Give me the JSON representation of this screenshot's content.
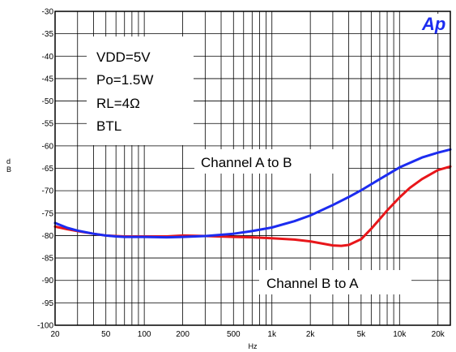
{
  "chart_data": {
    "type": "line",
    "xlabel": "Hz",
    "ylabel": "d B",
    "ylabel_lines": [
      "d",
      "B"
    ],
    "xscale": "log",
    "xlim": [
      20,
      25000
    ],
    "ylim": [
      -100,
      -30
    ],
    "grid": true,
    "xticks": [
      {
        "value": 20,
        "label": "20"
      },
      {
        "value": 50,
        "label": "50"
      },
      {
        "value": 100,
        "label": "100"
      },
      {
        "value": 200,
        "label": "200"
      },
      {
        "value": 500,
        "label": "500"
      },
      {
        "value": 1000,
        "label": "1k"
      },
      {
        "value": 2000,
        "label": "2k"
      },
      {
        "value": 5000,
        "label": "5k"
      },
      {
        "value": 10000,
        "label": "10k"
      },
      {
        "value": 20000,
        "label": "20k"
      }
    ],
    "yticks": [
      -30,
      -35,
      -40,
      -45,
      -50,
      -55,
      -60,
      -65,
      -70,
      -75,
      -80,
      -85,
      -90,
      -95,
      -100
    ],
    "conditions": [
      "VDD=5V",
      "Po=1.5W",
      "RL=4Ω",
      "BTL"
    ],
    "logo": "Ap",
    "series": [
      {
        "name": "Channel A to B",
        "color": "#1c2cf0",
        "x": [
          20,
          25,
          30,
          40,
          50,
          60,
          70,
          80,
          100,
          150,
          200,
          300,
          500,
          700,
          1000,
          1500,
          2000,
          3000,
          4000,
          5000,
          7000,
          10000,
          15000,
          20000,
          25000
        ],
        "y": [
          -77.2,
          -78.3,
          -78.9,
          -79.6,
          -80.0,
          -80.2,
          -80.3,
          -80.3,
          -80.3,
          -80.4,
          -80.3,
          -80.1,
          -79.6,
          -79.0,
          -78.2,
          -76.8,
          -75.5,
          -73.2,
          -71.4,
          -69.9,
          -67.4,
          -64.8,
          -62.6,
          -61.5,
          -60.8
        ]
      },
      {
        "name": "Channel B to A",
        "color": "#e8161a",
        "x": [
          20,
          25,
          30,
          40,
          50,
          60,
          70,
          80,
          100,
          150,
          200,
          300,
          500,
          700,
          1000,
          1500,
          2000,
          3000,
          3500,
          4000,
          5000,
          6000,
          7000,
          8000,
          10000,
          12000,
          15000,
          20000,
          25000
        ],
        "y": [
          -78.0,
          -78.6,
          -79.0,
          -79.6,
          -80.0,
          -80.1,
          -80.2,
          -80.2,
          -80.2,
          -80.2,
          -80.0,
          -80.1,
          -80.3,
          -80.4,
          -80.6,
          -80.9,
          -81.3,
          -82.2,
          -82.3,
          -82.1,
          -80.8,
          -78.5,
          -76.3,
          -74.4,
          -71.5,
          -69.4,
          -67.4,
          -65.4,
          -64.6
        ]
      }
    ]
  }
}
